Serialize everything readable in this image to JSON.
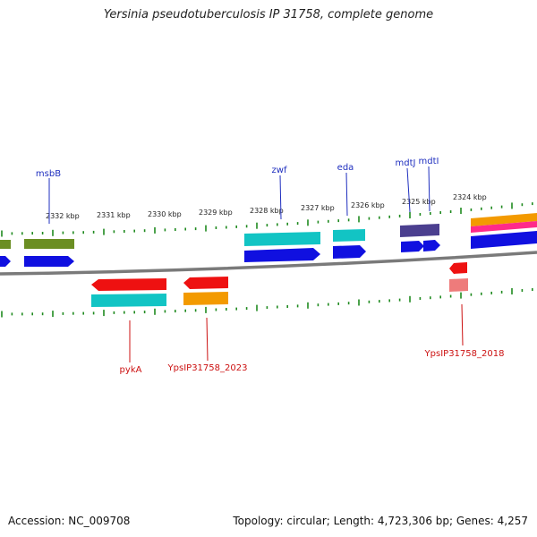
{
  "title": "Yersinia pseudotuberculosis IP 31758, complete genome",
  "footer": {
    "accession": "Accession: NC_009708",
    "topology": "Topology: circular; Length: 4,723,306 bp; Genes: 4,257"
  },
  "colors": {
    "backbone": "#7a7a7a",
    "tick": "#1f8a1f",
    "label_forward": "#1f2fbf",
    "label_reverse": "#cc1111"
  },
  "scale": {
    "ticks": [
      {
        "label": "2332 kbp"
      },
      {
        "label": "2331 kbp"
      },
      {
        "label": "2330 kbp"
      },
      {
        "label": "2329 kbp"
      },
      {
        "label": "2328 kbp"
      },
      {
        "label": "2327 kbp"
      },
      {
        "label": "2326 kbp"
      },
      {
        "label": "2325 kbp"
      },
      {
        "label": "2324 kbp"
      }
    ]
  },
  "gene_labels": {
    "forward": [
      {
        "name": "msbB"
      },
      {
        "name": "zwf"
      },
      {
        "name": "eda"
      },
      {
        "name": "mdtJ"
      },
      {
        "name": "mdtI"
      }
    ],
    "reverse": [
      {
        "name": "pykA"
      },
      {
        "name": "YpsIP31758_2023"
      },
      {
        "name": "YpsIP31758_2018"
      }
    ]
  },
  "feature_colors": {
    "cds": "#1010e0",
    "gene_olive": "#6b8e23",
    "gene_cyan": "#12c4c4",
    "gene_purple": "#4b3f8f",
    "gene_orange": "#f39a00",
    "gene_pink": "#ff2a8a",
    "cds_red": "#ee1111",
    "light_red": "#ee7b7b"
  }
}
